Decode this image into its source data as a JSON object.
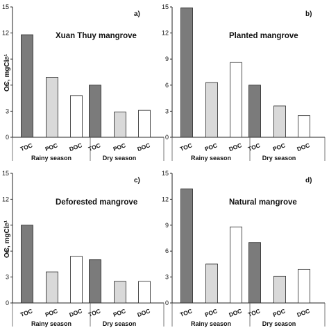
{
  "chart_data": [
    {
      "type": "bar",
      "panel_label": "a)",
      "title": "Xuan Thuy mangrove",
      "ylabel": "OC, mgCl⁻¹",
      "ylim": [
        0,
        15
      ],
      "yticks": [
        "0",
        "3",
        "6",
        "9",
        "12",
        "15"
      ],
      "categories": [
        "TOC",
        "POC",
        "DOC",
        "TOC",
        "POC",
        "DOC"
      ],
      "groups": [
        "Rainy season",
        "Dry season"
      ],
      "values": [
        11.8,
        6.9,
        4.8,
        6.0,
        2.9,
        3.1
      ]
    },
    {
      "type": "bar",
      "panel_label": "b)",
      "title": "Planted mangrove",
      "ylabel": "",
      "ylim": [
        0,
        15
      ],
      "yticks": [
        "0",
        "3",
        "6",
        "9",
        "12",
        "15"
      ],
      "categories": [
        "TOC",
        "POC",
        "DOC",
        "TOC",
        "POC",
        "DOC"
      ],
      "groups": [
        "Rainy season",
        "Dry season"
      ],
      "values": [
        14.9,
        6.3,
        8.6,
        6.0,
        3.6,
        2.5
      ]
    },
    {
      "type": "bar",
      "panel_label": "c)",
      "title": "Deforested mangrove",
      "ylabel": "OC, mgCl⁻¹",
      "ylim": [
        0,
        15
      ],
      "yticks": [
        "0",
        "3",
        "6",
        "9",
        "12",
        "15"
      ],
      "categories": [
        "TOC",
        "POC",
        "DOC",
        "TOC",
        "POC",
        "DOC"
      ],
      "groups": [
        "Rainy season",
        "Dry season"
      ],
      "values": [
        9.0,
        3.6,
        5.4,
        5.0,
        2.5,
        2.5
      ]
    },
    {
      "type": "bar",
      "panel_label": "d)",
      "title": "Natural mangrove",
      "ylabel": "",
      "ylim": [
        0,
        15
      ],
      "yticks": [
        "0",
        "3",
        "6",
        "9",
        "12",
        "15"
      ],
      "categories": [
        "TOC",
        "POC",
        "DOC",
        "TOC",
        "POC",
        "DOC"
      ],
      "groups": [
        "Rainy season",
        "Dry season"
      ],
      "values": [
        13.2,
        4.5,
        8.8,
        7.0,
        3.1,
        3.9
      ]
    }
  ],
  "colors": {
    "TOC": "#7b7b7b",
    "POC": "#d9d9d9",
    "DOC": "#ffffff",
    "outline": "#222222"
  }
}
